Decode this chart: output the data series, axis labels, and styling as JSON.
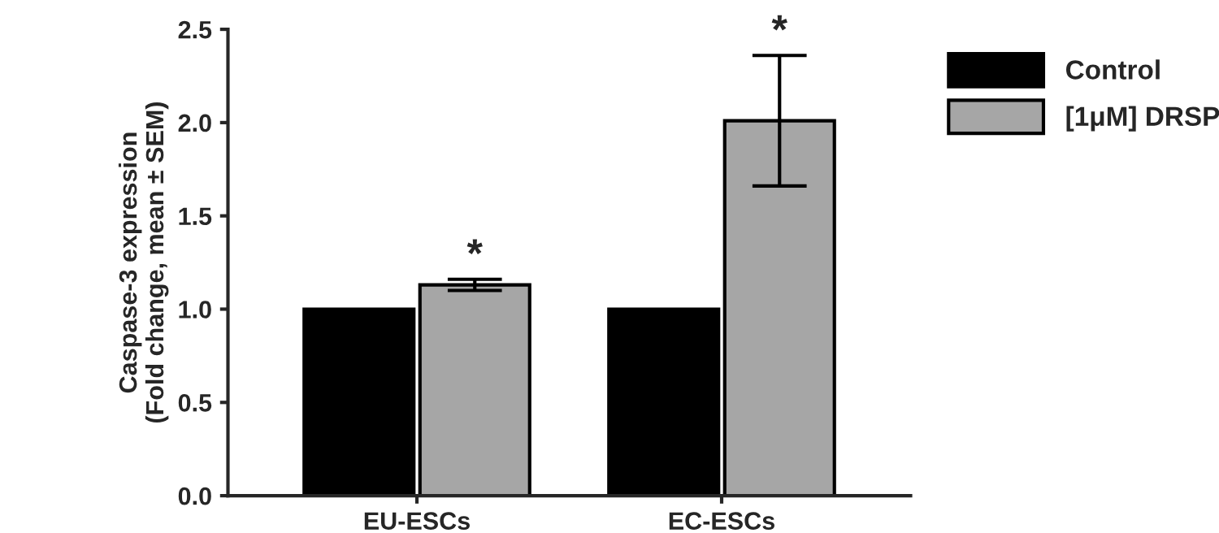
{
  "chart_data": {
    "type": "bar",
    "ylabel": "Caspase-3 expression\n(Fold change, mean ± SEM)",
    "categories": [
      "EU-ESCs",
      "EC-ESCs"
    ],
    "series": [
      {
        "name": "Control",
        "color": "#000000",
        "values": [
          1.0,
          1.0
        ]
      },
      {
        "name": "[1μM] DRSP",
        "color": "#a6a6a6",
        "values": [
          1.13,
          2.01
        ],
        "errors": [
          0.03,
          0.35
        ]
      }
    ],
    "ylim": [
      0,
      2.5
    ],
    "yticks": [
      {
        "value": 0,
        "label": "0.0"
      },
      {
        "value": 0.5,
        "label": "0.5"
      },
      {
        "value": 1.0,
        "label": "1.0"
      },
      {
        "value": 1.5,
        "label": "1.5"
      },
      {
        "value": 2.0,
        "label": "2.0"
      },
      {
        "value": 2.5,
        "label": "2.5"
      }
    ],
    "annotations": [
      "*",
      "*"
    ],
    "grid": false,
    "legend": "top right"
  }
}
